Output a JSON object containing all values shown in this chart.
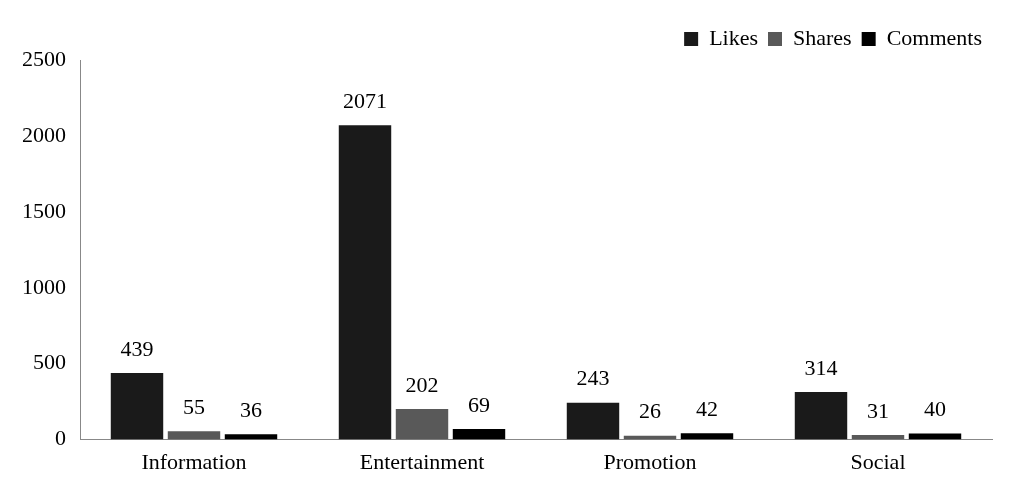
{
  "chart_data": {
    "type": "bar",
    "categories": [
      "Information",
      "Entertainment",
      "Promotion",
      "Social"
    ],
    "series": [
      {
        "name": "Likes",
        "color": "#1a1a1a",
        "values": [
          439,
          2071,
          243,
          314
        ]
      },
      {
        "name": "Shares",
        "color": "#595959",
        "values": [
          55,
          202,
          26,
          31
        ]
      },
      {
        "name": "Comments",
        "color": "#000000",
        "values": [
          36,
          69,
          42,
          40
        ]
      }
    ],
    "ylim": [
      0,
      2500
    ],
    "yticks": [
      0,
      500,
      1000,
      1500,
      2000,
      2500
    ],
    "grid": false,
    "legend": "top right",
    "data_labels": true
  }
}
